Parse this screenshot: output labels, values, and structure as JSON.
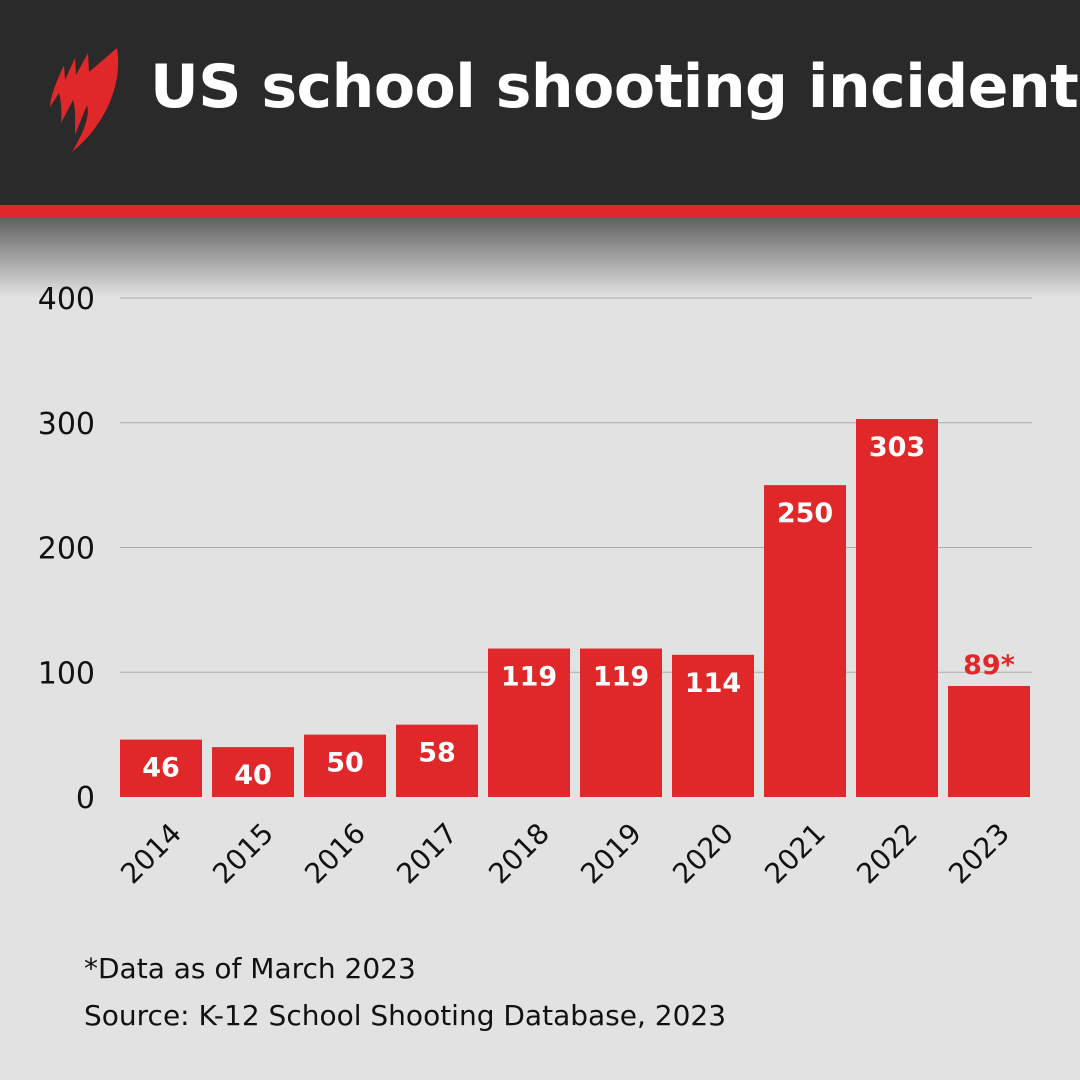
{
  "header": {
    "title": "US school shooting incidents",
    "logo": "SBS",
    "logo_icon": "sbs-logo-icon"
  },
  "colors": {
    "header_bg": "#2a2a2a",
    "accent": "#e0282a",
    "background": "#e2e2e2"
  },
  "chart_data": {
    "type": "bar",
    "title": "US school shooting incidents",
    "categories": [
      "2014",
      "2015",
      "2016",
      "2017",
      "2018",
      "2019",
      "2020",
      "2021",
      "2022",
      "2023"
    ],
    "values": [
      46,
      40,
      50,
      58,
      119,
      119,
      114,
      250,
      303,
      89
    ],
    "data_labels": [
      "46",
      "40",
      "50",
      "58",
      "119",
      "119",
      "114",
      "250",
      "303",
      "89*"
    ],
    "ylim": [
      0,
      400
    ],
    "yticks": [
      "0",
      "100",
      "200",
      "300",
      "400"
    ],
    "grid": true,
    "xlabel": "",
    "ylabel": "",
    "bar_color": "#e0282a"
  },
  "footer": {
    "note": "*Data as of March 2023",
    "source": "Source: K-12 School Shooting Database, 2023"
  }
}
